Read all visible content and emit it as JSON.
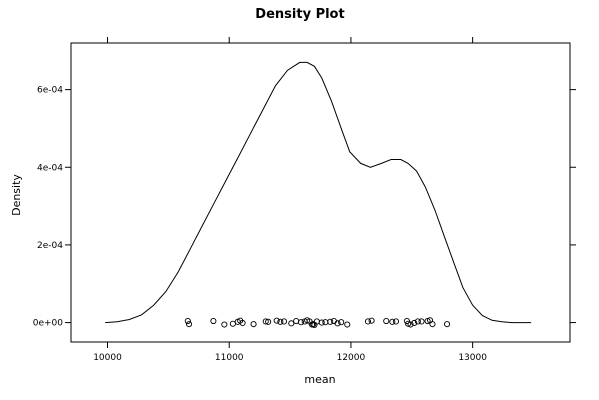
{
  "chart_data": {
    "type": "line",
    "title": "Density Plot",
    "xlabel": "mean",
    "ylabel": "Density",
    "xlim": [
      9700,
      13800
    ],
    "ylim": [
      -5e-05,
      0.00072
    ],
    "x_ticks": [
      10000,
      11000,
      12000,
      13000
    ],
    "x_tick_labels": [
      "10000",
      "11000",
      "12000",
      "13000"
    ],
    "y_ticks": [
      0,
      0.0002,
      0.0004,
      0.0006
    ],
    "y_tick_labels": [
      "0e+00",
      "2e-04",
      "4e-04",
      "6e-04"
    ],
    "grid": false,
    "legend": "none",
    "series": [
      {
        "type": "line",
        "color": "#000000",
        "x": [
          9980,
          10080,
          10180,
          10280,
          10380,
          10480,
          10580,
          10680,
          10780,
          10880,
          10980,
          11080,
          11180,
          11280,
          11380,
          11480,
          11580,
          11640,
          11700,
          11760,
          11840,
          11920,
          11990,
          12080,
          12160,
          12250,
          12330,
          12410,
          12470,
          12540,
          12610,
          12690,
          12770,
          12850,
          12920,
          13000,
          13080,
          13160,
          13240,
          13320,
          13400,
          13480
        ],
        "y": [
          0.0,
          2e-06,
          8e-06,
          2e-05,
          4.5e-05,
          8e-05,
          0.00013,
          0.00019,
          0.00025,
          0.00031,
          0.00037,
          0.00043,
          0.00049,
          0.00055,
          0.00061,
          0.00065,
          0.00067,
          0.00067,
          0.00066,
          0.00063,
          0.00057,
          0.0005,
          0.00044,
          0.00041,
          0.0004,
          0.00041,
          0.00042,
          0.00042,
          0.00041,
          0.00039,
          0.00035,
          0.00029,
          0.00022,
          0.00015,
          9e-05,
          4.5e-05,
          1.8e-05,
          6e-06,
          2e-06,
          0.0,
          0.0,
          0.0
        ]
      }
    ],
    "rug": {
      "marker": "open-circle",
      "color": "#000000",
      "points": [
        [
          10660,
          4e-06
        ],
        [
          10670,
          -4e-06
        ],
        [
          10870,
          4e-06
        ],
        [
          10960,
          -5e-06
        ],
        [
          11030,
          -3e-06
        ],
        [
          11070,
          2e-06
        ],
        [
          11090,
          5e-06
        ],
        [
          11110,
          -1e-06
        ],
        [
          11200,
          -4e-06
        ],
        [
          11300,
          3e-06
        ],
        [
          11320,
          2e-06
        ],
        [
          11390,
          5e-06
        ],
        [
          11420,
          2e-06
        ],
        [
          11450,
          3e-06
        ],
        [
          11510,
          -2e-06
        ],
        [
          11550,
          4e-06
        ],
        [
          11590,
          1e-06
        ],
        [
          11620,
          3e-06
        ],
        [
          11640,
          6e-06
        ],
        [
          11660,
          3e-06
        ],
        [
          11680,
          -5e-06
        ],
        [
          11690,
          -4e-06
        ],
        [
          11700,
          -6e-06
        ],
        [
          11720,
          3e-06
        ],
        [
          11760,
          0.0
        ],
        [
          11790,
          1e-06
        ],
        [
          11830,
          2e-06
        ],
        [
          11860,
          4e-06
        ],
        [
          11890,
          -2e-06
        ],
        [
          11920,
          1e-06
        ],
        [
          11970,
          -5e-06
        ],
        [
          12140,
          3e-06
        ],
        [
          12170,
          5e-06
        ],
        [
          12290,
          4e-06
        ],
        [
          12340,
          2e-06
        ],
        [
          12370,
          3e-06
        ],
        [
          12460,
          4e-06
        ],
        [
          12470,
          -3e-06
        ],
        [
          12490,
          -5e-06
        ],
        [
          12520,
          -1e-06
        ],
        [
          12550,
          3e-06
        ],
        [
          12580,
          3e-06
        ],
        [
          12630,
          4e-06
        ],
        [
          12650,
          6e-06
        ],
        [
          12670,
          -4e-06
        ],
        [
          12790,
          -4e-06
        ]
      ]
    }
  }
}
